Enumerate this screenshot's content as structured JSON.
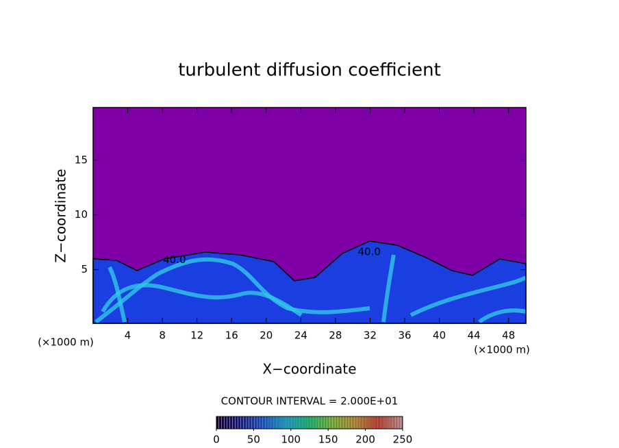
{
  "chart_data": {
    "type": "contour",
    "title": "turbulent diffusion coefficient",
    "xlabel": "X−coordinate",
    "ylabel": "Z−coordinate",
    "x_unit": "(×1000 m)",
    "y_unit": "(×1000 m)",
    "xlim": [
      0,
      50
    ],
    "ylim": [
      0.1,
      19.8
    ],
    "xticks": [
      4,
      8,
      12,
      16,
      20,
      24,
      28,
      32,
      36,
      40,
      44,
      48
    ],
    "yticks": [
      5,
      10,
      15
    ],
    "annotations": [
      {
        "text": "40.0",
        "x": 9.4,
        "y": 5.9
      },
      {
        "text": "40.0",
        "x": 31.9,
        "y": 6.6
      }
    ],
    "contour_interval": "CONTOUR INTERVAL = 2.000E+01",
    "clim": [
      0,
      250
    ],
    "cticks": [
      0,
      50,
      100,
      150,
      200,
      250
    ],
    "colormap": [
      "#1a0033",
      "#1a1a8c",
      "#1a5cd9",
      "#1ab0e0",
      "#1ad080",
      "#8cd040",
      "#d0a040",
      "#d04030",
      "#e0a0a0"
    ],
    "background_color": "#7f00a6"
  }
}
